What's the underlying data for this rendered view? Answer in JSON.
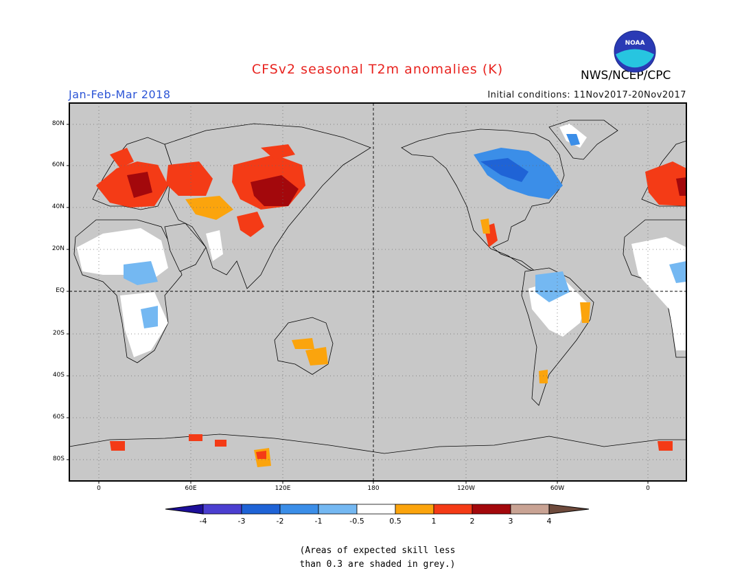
{
  "header": {
    "title": "CFSv2 seasonal T2m anomalies (K)",
    "period": "Jan-Feb-Mar 2018",
    "initial_conditions": "Initial conditions: 11Nov2017-20Nov2017",
    "agency": "NWS/NCEP/CPC",
    "logo_text": "NOAA"
  },
  "map": {
    "projection": "equirectangular",
    "latitude_labels": [
      "80N",
      "60N",
      "40N",
      "20N",
      "EQ",
      "20S",
      "40S",
      "60S",
      "80S"
    ],
    "longitude_labels": [
      "0",
      "60E",
      "120E",
      "180",
      "120W",
      "60W",
      "0"
    ],
    "background_color": "#c8c8c8",
    "reference_lines": [
      "Equator (dashed)",
      "180 meridian (dashed)"
    ]
  },
  "legend": {
    "tick_labels": [
      "-4",
      "-3",
      "-2",
      "-1",
      "-0.5",
      "0.5",
      "1",
      "2",
      "3",
      "4"
    ],
    "colors": [
      "#1d0f9a",
      "#4b3fd0",
      "#1f63d6",
      "#3b8ee8",
      "#74b8f2",
      "#ffffff",
      "#fba40d",
      "#f43b16",
      "#a3080c",
      "#c9a394",
      "#6e4a3c"
    ],
    "color_meaning": [
      "< -4",
      "-4 to -3",
      "-3 to -2",
      "-2 to -1",
      "-1 to -0.5",
      "-0.5 to 0.5",
      "0.5 to 1",
      "1 to 2",
      "2 to 3",
      "3 to 4",
      "> 4"
    ]
  },
  "footnote": {
    "line1": "(Areas of expected skill less",
    "line2": "than 0.3 are shaded in grey.)"
  }
}
